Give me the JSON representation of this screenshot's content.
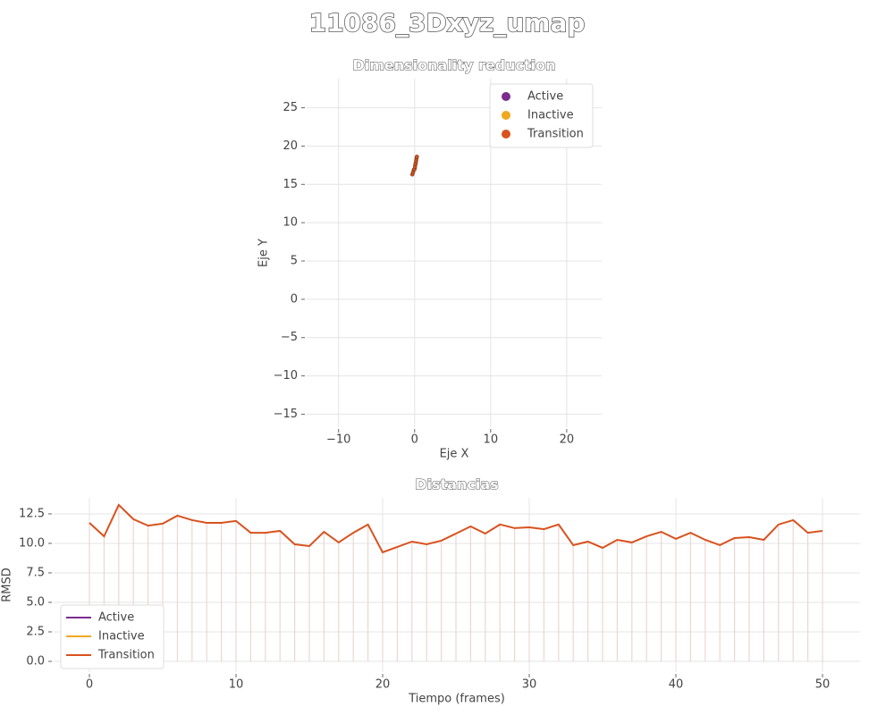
{
  "title": "11086_3Dxyz_umap",
  "chart_data": [
    {
      "type": "scatter",
      "title": "Dimensionality reduction",
      "xlabel": "Eje X",
      "ylabel": "Eje Y",
      "xlim": [
        -14.2,
        24.6
      ],
      "ylim": [
        -16.7,
        28.8
      ],
      "xticks": [
        {
          "value": -10,
          "label": "−10"
        },
        0,
        10,
        20
      ],
      "yticks": [
        {
          "value": -15,
          "label": "−15"
        },
        {
          "value": -10,
          "label": "−10"
        },
        {
          "value": -5,
          "label": "−5"
        },
        0,
        5,
        10,
        15,
        20,
        25
      ],
      "grid": true,
      "legend": "upper right",
      "series": [
        {
          "name": "Active",
          "color": "#7b2d8e",
          "x": [],
          "values": []
        },
        {
          "name": "Inactive",
          "color": "#f0a820",
          "x": [],
          "values": []
        },
        {
          "name": "Transition",
          "color": "#d9521e",
          "x": [
            -0.3,
            -0.2,
            -0.1,
            0.0,
            0.05,
            0.1,
            0.15,
            0.2,
            0.25,
            0.3
          ],
          "values": [
            16.3,
            16.6,
            16.9,
            17.0,
            17.3,
            17.6,
            17.8,
            18.1,
            18.4,
            18.6
          ]
        }
      ]
    },
    {
      "type": "line",
      "title": "Distancias",
      "xlabel": "Tiempo (frames)",
      "ylabel": "RMSD",
      "xlim": [
        -2.44,
        52.56
      ],
      "ylim": [
        -0.91,
        13.86
      ],
      "xticks": [
        0,
        10,
        20,
        30,
        40,
        50
      ],
      "yticks": [
        {
          "value": 0,
          "label": "0.0"
        },
        {
          "value": 2.5,
          "label": "2.5"
        },
        {
          "value": 5,
          "label": "5.0"
        },
        {
          "value": 7.5,
          "label": "7.5"
        },
        {
          "value": 10,
          "label": "10.0"
        },
        {
          "value": 12.5,
          "label": "12.5"
        }
      ],
      "grid": true,
      "stems": true,
      "legend": "lower left",
      "series": [
        {
          "name": "Active",
          "color": "#7b2d8e",
          "x": [],
          "values": []
        },
        {
          "name": "Inactive",
          "color": "#f0a820",
          "x": [],
          "values": []
        },
        {
          "name": "Transition",
          "color": "#d9521e",
          "x": [
            0,
            1,
            2,
            3,
            4,
            5,
            6,
            7,
            8,
            9,
            10,
            11,
            12,
            13,
            14,
            15,
            16,
            17,
            18,
            19,
            20,
            21,
            22,
            23,
            24,
            25,
            26,
            27,
            28,
            29,
            30,
            31,
            32,
            33,
            34,
            35,
            36,
            37,
            38,
            39,
            40,
            41,
            42,
            43,
            44,
            45,
            46,
            47,
            48,
            49,
            50
          ],
          "values": [
            11.74,
            10.6,
            13.26,
            12.05,
            11.5,
            11.67,
            12.35,
            11.97,
            11.74,
            11.74,
            11.9,
            10.9,
            10.9,
            11.06,
            9.92,
            9.77,
            10.98,
            10.08,
            10.9,
            11.6,
            9.24,
            9.7,
            10.15,
            9.92,
            10.23,
            10.83,
            11.44,
            10.83,
            11.6,
            11.29,
            11.36,
            11.2,
            11.6,
            9.85,
            10.15,
            9.62,
            10.3,
            10.08,
            10.6,
            10.98,
            10.38,
            10.9,
            10.3,
            9.85,
            10.45,
            10.53,
            10.3,
            11.6,
            11.97,
            10.9,
            11.06
          ]
        }
      ]
    }
  ]
}
